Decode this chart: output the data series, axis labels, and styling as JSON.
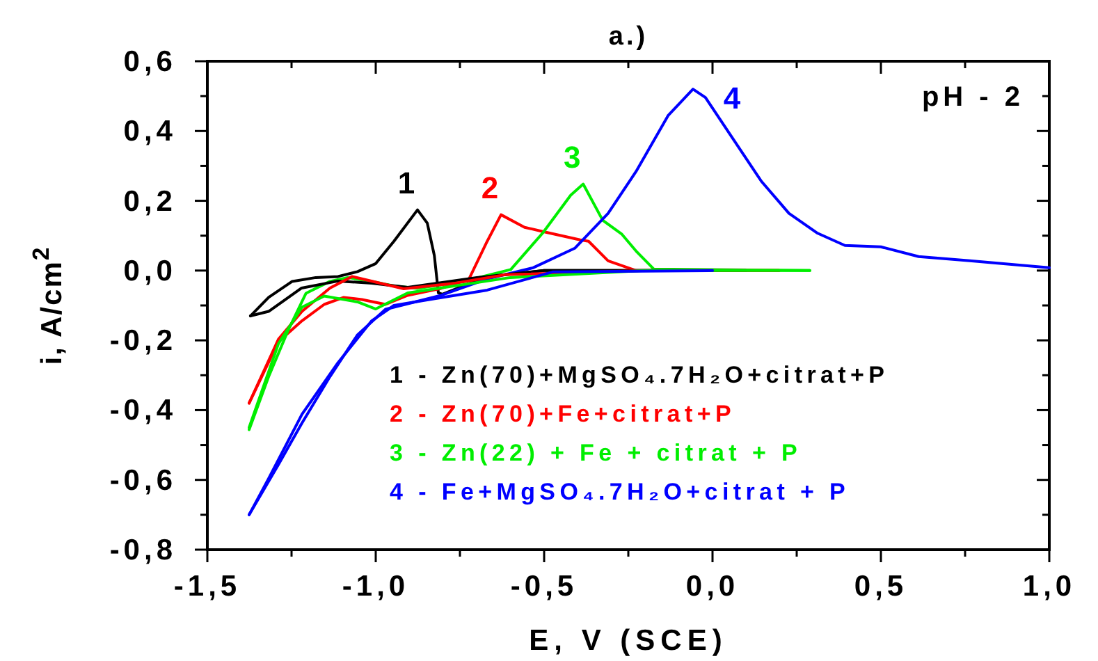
{
  "chart_data": {
    "type": "line",
    "title": "a.)",
    "xlabel": "E, V (SCE)",
    "ylabel": "i, A/cm$^{2}$",
    "xlim": [
      -1.5,
      1.0
    ],
    "ylim": [
      -0.8,
      0.6
    ],
    "xticks": [
      {
        "value": -1.5,
        "label": "-1,5"
      },
      {
        "value": -1.25,
        "label": null
      },
      {
        "value": -1.0,
        "label": "-1,0"
      },
      {
        "value": -0.75,
        "label": null
      },
      {
        "value": -0.5,
        "label": "-0,5"
      },
      {
        "value": -0.25,
        "label": null
      },
      {
        "value": 0.0,
        "label": "0,0"
      },
      {
        "value": 0.25,
        "label": null
      },
      {
        "value": 0.5,
        "label": "0,5"
      },
      {
        "value": 0.75,
        "label": null
      },
      {
        "value": 1.0,
        "label": "1,0"
      }
    ],
    "yticks": [
      {
        "value": -0.8,
        "label": "-0,8"
      },
      {
        "value": -0.7,
        "label": null
      },
      {
        "value": -0.6,
        "label": "-0,6"
      },
      {
        "value": -0.5,
        "label": null
      },
      {
        "value": -0.4,
        "label": "-0,4"
      },
      {
        "value": -0.3,
        "label": null
      },
      {
        "value": -0.2,
        "label": "-0,2"
      },
      {
        "value": -0.1,
        "label": null
      },
      {
        "value": 0.0,
        "label": "0,0"
      },
      {
        "value": 0.1,
        "label": null
      },
      {
        "value": 0.2,
        "label": "0,2"
      },
      {
        "value": 0.3,
        "label": null
      },
      {
        "value": 0.4,
        "label": "0,4"
      },
      {
        "value": 0.5,
        "label": null
      },
      {
        "value": 0.6,
        "label": "0,6"
      }
    ],
    "grid": false,
    "legend": "bottom right",
    "marker": "none",
    "line_style": "solid",
    "series": [
      {
        "name": "1 - Zn(70)+MgSO₄.7H₂O+citrat+P",
        "color": "#000000",
        "x": [
          -1.372,
          -1.318,
          -1.248,
          -1.178,
          -1.112,
          -1.054,
          -1.0,
          -0.946,
          -0.876,
          -0.847,
          -0.826,
          -0.814,
          -0.802,
          -0.669,
          -0.5,
          -0.2,
          0.1
        ],
        "values": [
          -0.13,
          -0.077,
          -0.031,
          -0.02,
          -0.017,
          -0.003,
          0.02,
          0.084,
          0.174,
          0.136,
          0.043,
          -0.064,
          -0.068,
          -0.017,
          0.0,
          0.0,
          0.0
        ]
      },
      {
        "name": "2 - Zn(70)+Fe+citrat+P",
        "color": "#ff0000",
        "x": [
          -1.376,
          -1.289,
          -1.219,
          -1.153,
          -1.095,
          -1.041,
          -0.971,
          -0.905,
          -0.806,
          -0.723,
          -0.669,
          -0.628,
          -0.558,
          -0.504,
          -0.393,
          -0.368,
          -0.31,
          -0.227,
          0.198
        ],
        "values": [
          -0.38,
          -0.204,
          -0.144,
          -0.097,
          -0.077,
          -0.083,
          -0.097,
          -0.071,
          -0.051,
          -0.024,
          0.084,
          0.16,
          0.124,
          0.112,
          0.088,
          0.084,
          0.028,
          0.0,
          0.0
        ]
      },
      {
        "name": "3 - Zn(22) + Fe + citrat + P",
        "color": "#00ee00",
        "x": [
          -1.376,
          -1.318,
          -1.26,
          -1.207,
          -1.136,
          -1.083,
          -1.012,
          -0.946,
          -0.876,
          -0.74,
          -0.599,
          -0.504,
          -0.421,
          -0.384,
          -0.326,
          -0.269,
          -0.227,
          -0.174,
          0.289
        ],
        "values": [
          -0.456,
          -0.304,
          -0.171,
          -0.065,
          -0.031,
          -0.02,
          -0.031,
          -0.044,
          -0.051,
          -0.031,
          0.003,
          0.108,
          0.216,
          0.248,
          0.144,
          0.104,
          0.056,
          0.004,
          0.0
        ]
      },
      {
        "name": "4 - Fe+MgSO₄.7H₂O+citrat + P",
        "color": "#0000ff",
        "x": [
          -1.376,
          -1.289,
          -1.219,
          -1.136,
          -1.054,
          -0.971,
          -0.917,
          -0.806,
          -0.669,
          -0.533,
          -0.409,
          -0.31,
          -0.227,
          -0.132,
          -0.058,
          -0.021,
          0.062,
          0.145,
          0.227,
          0.31,
          0.393,
          0.5,
          0.612,
          0.764,
          1.0
        ],
        "values": [
          -0.7,
          -0.556,
          -0.437,
          -0.304,
          -0.184,
          -0.111,
          -0.098,
          -0.071,
          -0.024,
          0.008,
          0.064,
          0.164,
          0.284,
          0.444,
          0.52,
          0.496,
          0.376,
          0.256,
          0.164,
          0.108,
          0.072,
          0.068,
          0.04,
          0.028,
          0.008
        ]
      },
      {
        "color": "#000000",
        "x": [
          0.1,
          -0.2,
          -0.5,
          -0.7,
          -0.905,
          -1.012,
          -1.112,
          -1.22,
          -1.318,
          -1.372
        ],
        "values": [
          0.0,
          0.0,
          0.0,
          -0.02,
          -0.048,
          -0.036,
          -0.03,
          -0.05,
          -0.117,
          -0.13
        ]
      },
      {
        "color": "#ff0000",
        "x": [
          0.198,
          -0.2,
          -0.616,
          -0.764,
          -0.917,
          -1.07,
          -1.136,
          -1.219,
          -1.289,
          -1.376
        ],
        "values": [
          0.0,
          0.0,
          -0.012,
          -0.036,
          -0.052,
          -0.017,
          -0.05,
          -0.117,
          -0.197,
          -0.38
        ]
      },
      {
        "color": "#00ee00",
        "x": [
          0.289,
          -0.2,
          -0.6,
          -0.905,
          -1.0,
          -1.054,
          -1.153,
          -1.219,
          -1.289,
          -1.376
        ],
        "values": [
          0.0,
          0.0,
          -0.02,
          -0.064,
          -0.11,
          -0.09,
          -0.073,
          -0.105,
          -0.21,
          -0.45
        ]
      },
      {
        "color": "#0000ff",
        "x": [
          0.0,
          -0.475,
          -0.669,
          -0.847,
          -0.946,
          -1.012,
          -1.112,
          -1.219,
          -1.318,
          -1.376
        ],
        "values": [
          0.0,
          -0.004,
          -0.056,
          -0.084,
          -0.1,
          -0.144,
          -0.264,
          -0.412,
          -0.596,
          -0.7
        ]
      }
    ],
    "annotations": [
      "1",
      "2",
      "3",
      "4",
      "pH - 2"
    ]
  }
}
